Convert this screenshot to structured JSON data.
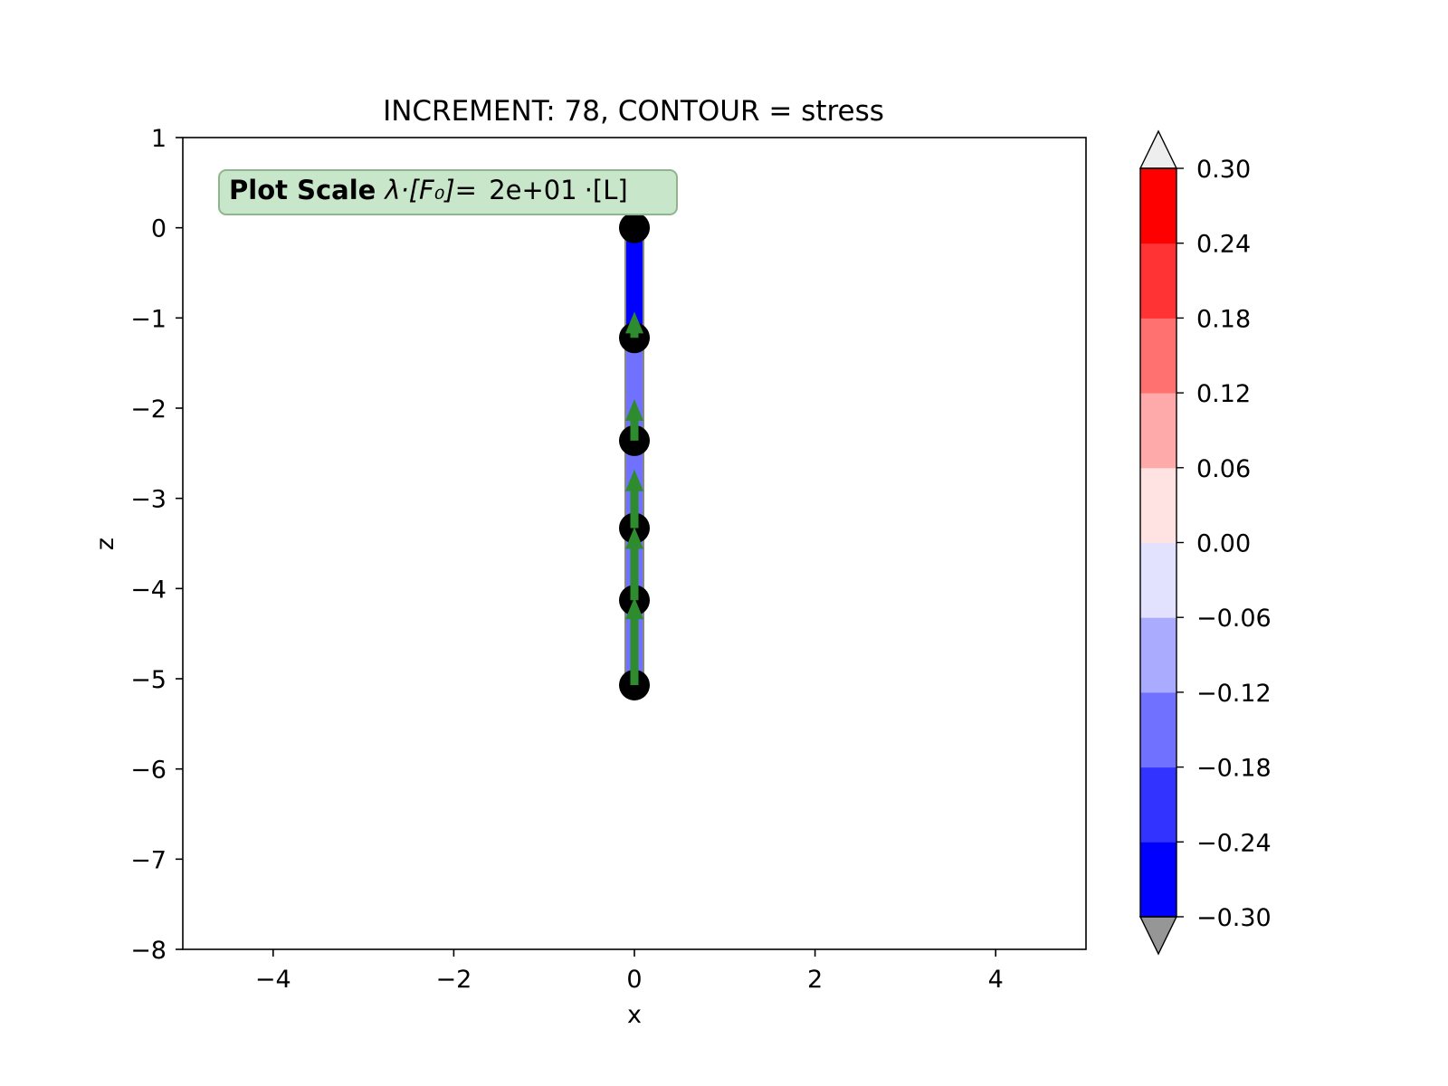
{
  "chart_data": {
    "type": "scatter",
    "title": "INCREMENT: 78, CONTOUR = stress",
    "xlabel": "x",
    "ylabel": "z",
    "xlim": [
      -5,
      5
    ],
    "ylim": [
      -8,
      1
    ],
    "xticks": [
      -4,
      -2,
      0,
      2,
      4
    ],
    "xtick_labels": [
      "−4",
      "−2",
      "0",
      "2",
      "4"
    ],
    "yticks": [
      1,
      0,
      -1,
      -2,
      -3,
      -4,
      -5,
      -6,
      -7,
      -8
    ],
    "ytick_labels": [
      "1",
      "0",
      "−1",
      "−2",
      "−3",
      "−4",
      "−5",
      "−6",
      "−7",
      "−8"
    ],
    "grid": false,
    "annotation": {
      "bold": "Plot Scale",
      "formula": "λ·[F₀]= ",
      "value": "2e+01",
      "unit": "·[L]"
    },
    "nodes": [
      {
        "x": 0,
        "z": 0.0
      },
      {
        "x": 0,
        "z": -1.22
      },
      {
        "x": 0,
        "z": -2.36
      },
      {
        "x": 0,
        "z": -3.33
      },
      {
        "x": 0,
        "z": -4.13
      },
      {
        "x": 0,
        "z": -5.07
      }
    ],
    "elements": [
      {
        "from": 0,
        "to": 1,
        "stress": -0.25
      },
      {
        "from": 1,
        "to": 2,
        "stress": -0.16
      },
      {
        "from": 2,
        "to": 3,
        "stress": -0.16
      },
      {
        "from": 3,
        "to": 4,
        "stress": -0.16
      },
      {
        "from": 4,
        "to": 5,
        "stress": -0.16
      }
    ],
    "forces": [
      {
        "x": 0,
        "z_tail": -1.22,
        "z_tip": -0.93
      },
      {
        "x": 0,
        "z_tail": -2.36,
        "z_tip": -1.9
      },
      {
        "x": 0,
        "z_tail": -3.33,
        "z_tip": -2.68
      },
      {
        "x": 0,
        "z_tail": -4.13,
        "z_tip": -3.32
      },
      {
        "x": 0,
        "z_tail": -5.07,
        "z_tip": -4.1
      }
    ],
    "colors": {
      "node": "#000000",
      "force_arrow": "#2e8b2e",
      "element_edge": "#888888",
      "annotation_bg": "#c8e6c9",
      "annotation_border": "#8fb58f"
    },
    "colorbar": {
      "levels": [
        -0.3,
        -0.24,
        -0.18,
        -0.12,
        -0.06,
        0.0,
        0.06,
        0.12,
        0.18,
        0.24,
        0.3
      ],
      "tick_labels": [
        "−0.30",
        "−0.24",
        "−0.18",
        "−0.12",
        "−0.06",
        "0.00",
        "0.06",
        "0.12",
        "0.18",
        "0.24",
        "0.30"
      ],
      "colors": [
        "#0000ff",
        "#3333ff",
        "#7171ff",
        "#aaaaff",
        "#e2e2ff",
        "#ffe2e2",
        "#ffaaaa",
        "#ff7171",
        "#ff3333",
        "#ff0000"
      ],
      "extend_min_color": "#969696",
      "extend_max_color": "#eeeeee"
    }
  }
}
